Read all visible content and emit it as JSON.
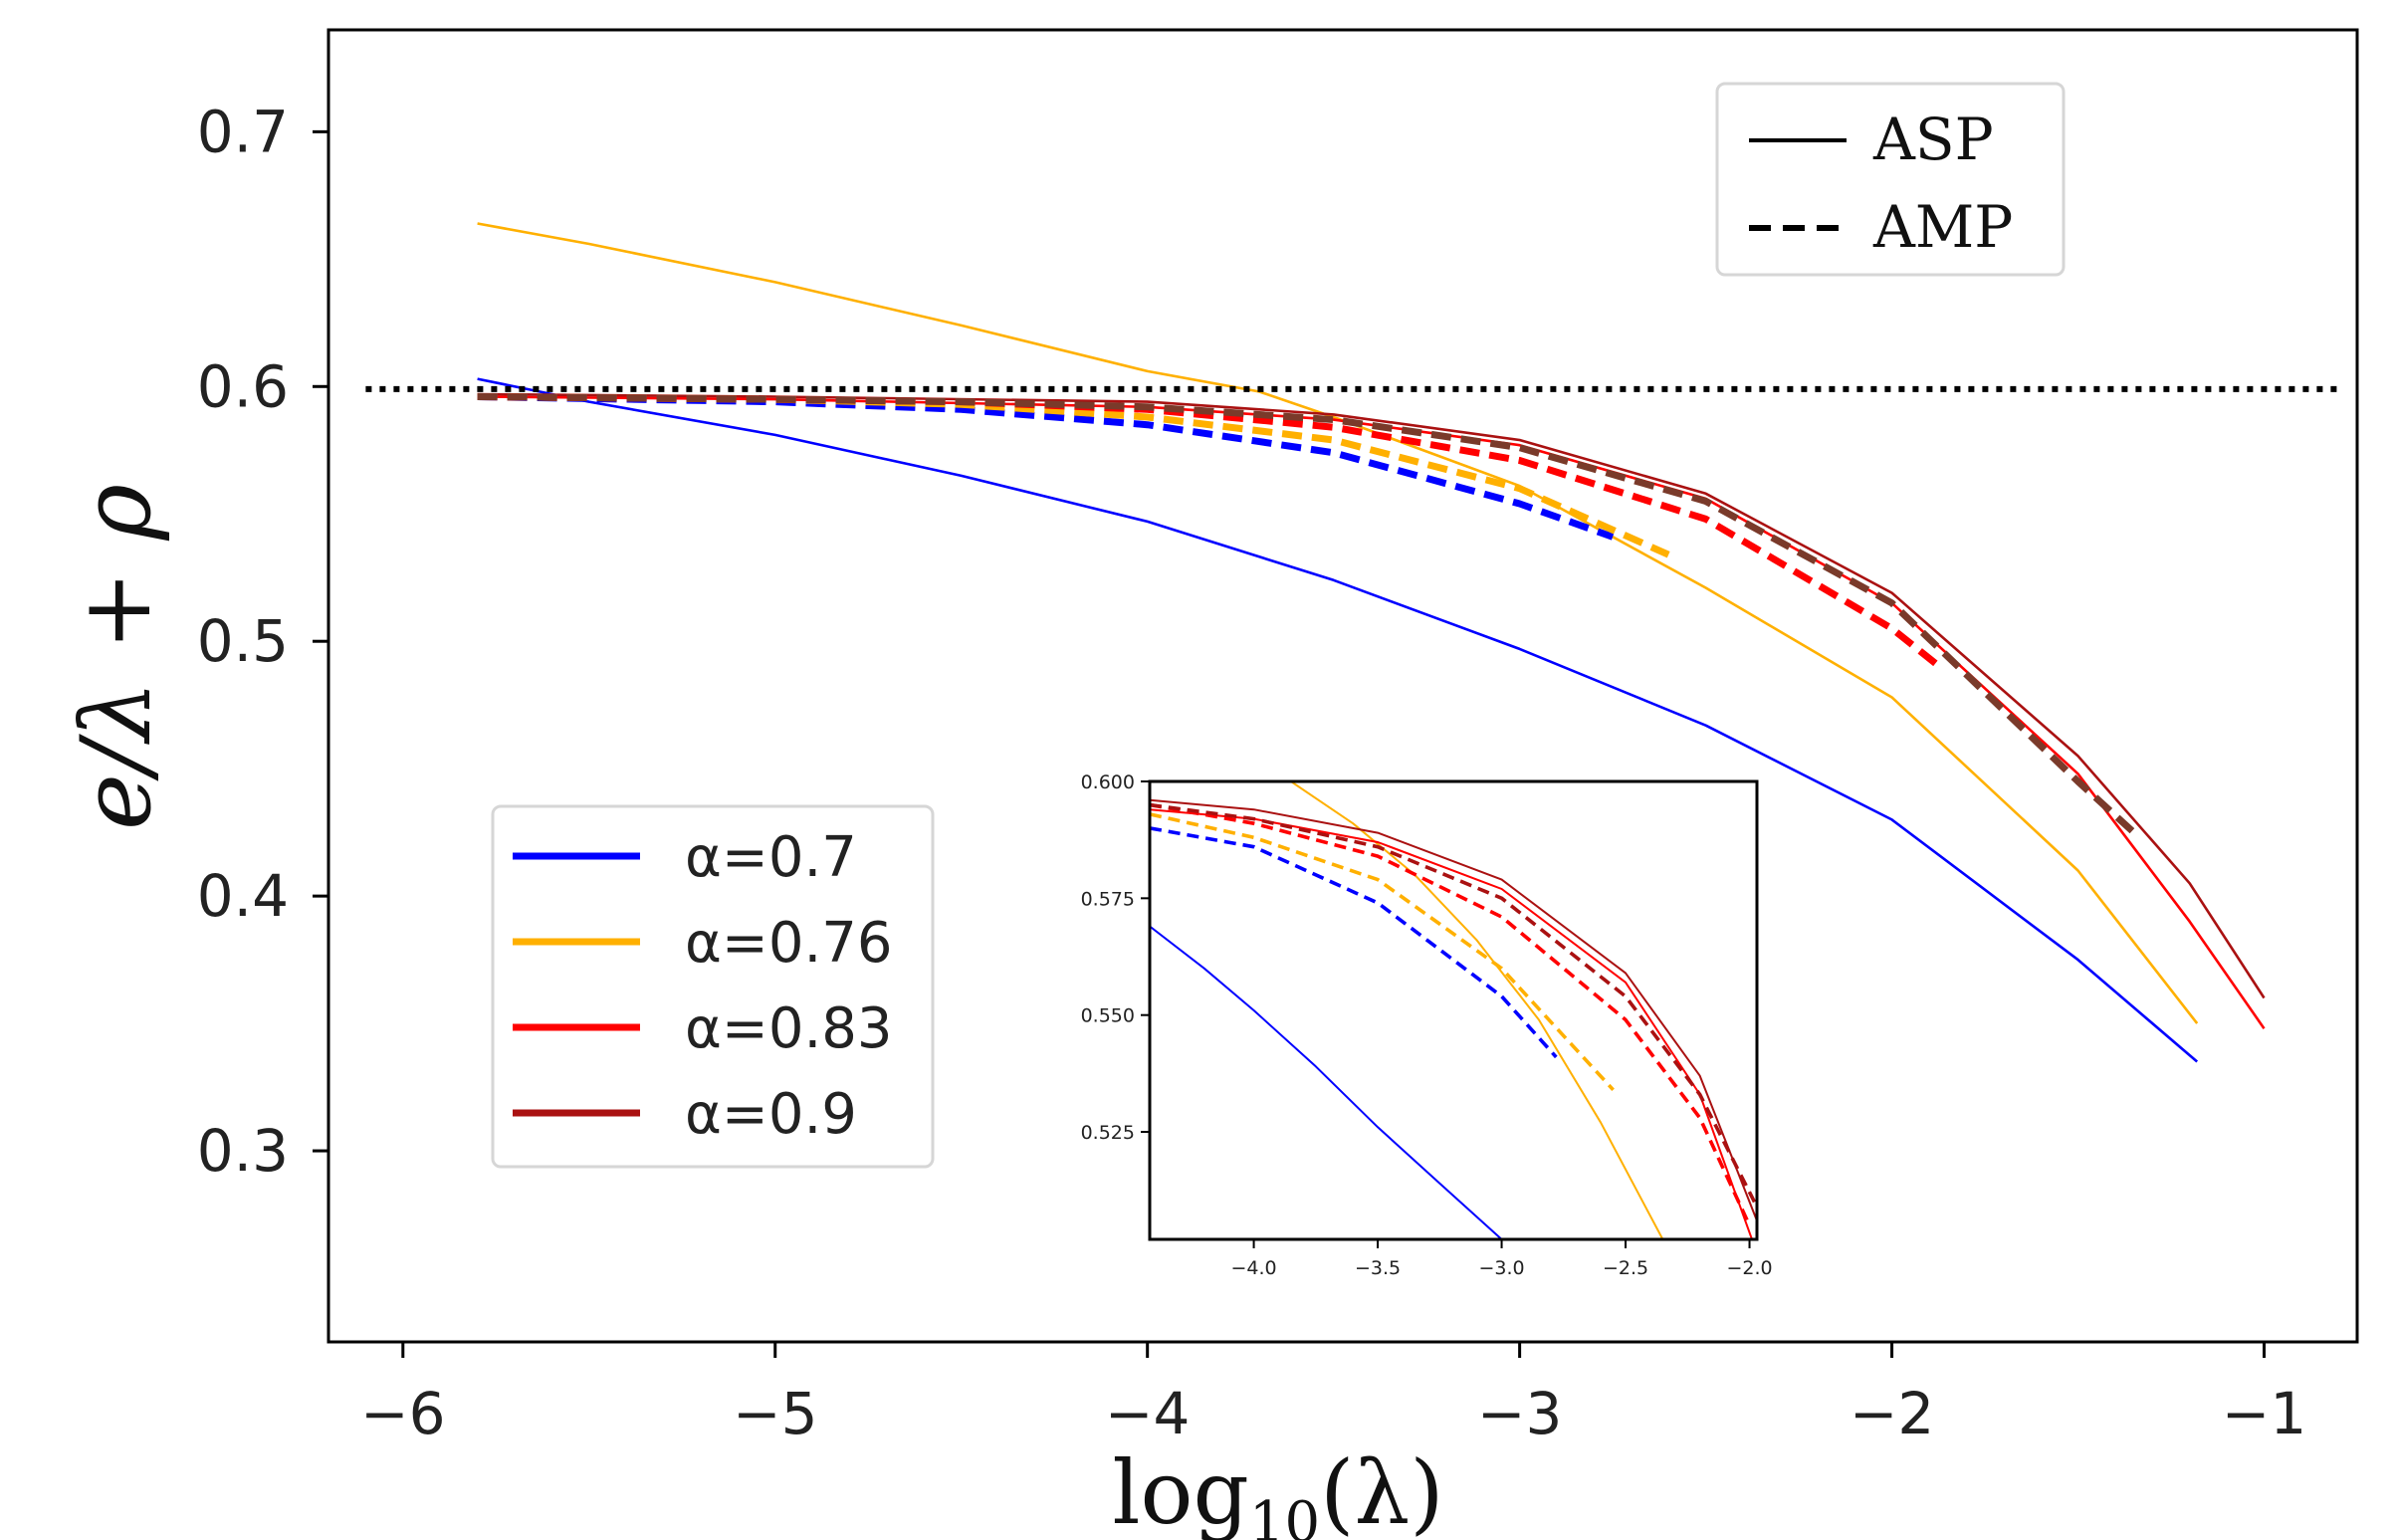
{
  "chart_data": [
    {
      "name": "main",
      "type": "line",
      "xlabel": "log10(λ)",
      "xlabel_parts": {
        "base": "log",
        "sub": "10",
        "arg": "(λ)"
      },
      "ylabel": "e/λ + ρ",
      "xlim": [
        -6.2,
        -0.75
      ],
      "ylim": [
        0.225,
        0.74
      ],
      "xticks": [
        -6,
        -5,
        -4,
        -3,
        -2,
        -1
      ],
      "xtick_labels": [
        "−6",
        "−5",
        "−4",
        "−3",
        "−2",
        "−1"
      ],
      "yticks": [
        0.3,
        0.4,
        0.5,
        0.6,
        0.7
      ],
      "ytick_labels": [
        "0.3",
        "0.4",
        "0.5",
        "0.6",
        "0.7"
      ],
      "reference_line": {
        "y": 0.599,
        "x_range": [
          -6.1,
          -0.8
        ],
        "style": "dotted",
        "color": "#000000"
      },
      "series": [
        {
          "name": "α=0.7 ASP",
          "alpha": "0.7",
          "style": "solid",
          "color": "#0000ff",
          "x": [
            -5.8,
            -5.5,
            -5.0,
            -4.5,
            -4.0,
            -3.5,
            -3.0,
            -2.5,
            -2.0,
            -1.5,
            -1.18
          ],
          "y": [
            0.603,
            0.594,
            0.581,
            0.565,
            0.547,
            0.524,
            0.497,
            0.467,
            0.43,
            0.375,
            0.335
          ]
        },
        {
          "name": "α=0.76 ASP",
          "alpha": "0.76",
          "style": "solid",
          "color": "#ffb000",
          "x": [
            -5.8,
            -5.5,
            -5.0,
            -4.5,
            -4.0,
            -3.7,
            -3.5,
            -3.0,
            -2.5,
            -2.0,
            -1.5,
            -1.18
          ],
          "y": [
            0.664,
            0.656,
            0.641,
            0.624,
            0.606,
            0.598,
            0.588,
            0.561,
            0.521,
            0.478,
            0.41,
            0.35
          ]
        },
        {
          "name": "α=0.83 ASP",
          "alpha": "0.83",
          "style": "solid",
          "color": "#ff0000",
          "x": [
            -5.8,
            -5.0,
            -4.0,
            -3.5,
            -3.0,
            -2.5,
            -2.0,
            -1.5,
            -1.2,
            -1.0
          ],
          "y": [
            0.596,
            0.595,
            0.592,
            0.587,
            0.577,
            0.556,
            0.515,
            0.448,
            0.39,
            0.348
          ]
        },
        {
          "name": "α=0.9 ASP",
          "alpha": "0.9",
          "style": "solid",
          "color": "#aa1111",
          "x": [
            -5.8,
            -5.0,
            -4.0,
            -3.5,
            -3.0,
            -2.5,
            -2.0,
            -1.5,
            -1.2,
            -1.0
          ],
          "y": [
            0.597,
            0.596,
            0.594,
            0.589,
            0.579,
            0.558,
            0.519,
            0.455,
            0.405,
            0.36
          ]
        },
        {
          "name": "α=0.7 AMP",
          "alpha": "0.7",
          "style": "dashed",
          "color": "#0000ff",
          "x": [
            -5.8,
            -5.0,
            -4.5,
            -4.0,
            -3.5,
            -3.0,
            -2.75
          ],
          "y": [
            0.596,
            0.594,
            0.591,
            0.585,
            0.574,
            0.554,
            0.541
          ]
        },
        {
          "name": "α=0.76 AMP",
          "alpha": "0.76",
          "style": "dashed",
          "color": "#ffb000",
          "x": [
            -5.8,
            -5.0,
            -4.5,
            -4.0,
            -3.5,
            -3.0,
            -2.6
          ],
          "y": [
            0.596,
            0.595,
            0.593,
            0.588,
            0.579,
            0.56,
            0.534
          ]
        },
        {
          "name": "α=0.83 AMP",
          "alpha": "0.83",
          "style": "dashed",
          "color": "#ff0000",
          "x": [
            -5.8,
            -5.0,
            -4.5,
            -4.0,
            -3.5,
            -3.0,
            -2.5,
            -2.0,
            -1.88
          ],
          "y": [
            0.596,
            0.595,
            0.594,
            0.591,
            0.584,
            0.571,
            0.548,
            0.505,
            0.491
          ]
        },
        {
          "name": "α=0.9 AMP",
          "alpha": "0.9",
          "style": "dashed",
          "color": "#7a3a2a",
          "x": [
            -5.8,
            -5.0,
            -4.5,
            -4.0,
            -3.5,
            -3.0,
            -2.5,
            -2.0,
            -1.5,
            -1.35
          ],
          "y": [
            0.596,
            0.595,
            0.594,
            0.592,
            0.587,
            0.576,
            0.555,
            0.515,
            0.445,
            0.425
          ]
        }
      ],
      "legend_alpha": {
        "position": "lower-left",
        "entries": [
          {
            "label": "α=0.7",
            "color": "#0000ff"
          },
          {
            "label": "α=0.76",
            "color": "#ffb000"
          },
          {
            "label": "α=0.83",
            "color": "#ff0000"
          },
          {
            "label": "α=0.9",
            "color": "#aa1111"
          }
        ]
      },
      "legend_style": {
        "position": "top-right",
        "entries": [
          {
            "label": "ASP",
            "style": "solid"
          },
          {
            "label": "AMP",
            "style": "dashed"
          }
        ]
      }
    },
    {
      "name": "inset",
      "type": "line",
      "xlim": [
        -4.42,
        -1.97
      ],
      "ylim": [
        0.502,
        0.6
      ],
      "xticks": [
        -4.0,
        -3.5,
        -3.0,
        -2.5,
        -2.0
      ],
      "xtick_labels": [
        "−4.0",
        "−3.5",
        "−3.0",
        "−2.5",
        "−2.0"
      ],
      "yticks": [
        0.525,
        0.55,
        0.575,
        0.6
      ],
      "ytick_labels": [
        "0.525",
        "0.550",
        "0.575",
        "0.600"
      ],
      "series": [
        {
          "name": "α=0.7 ASP",
          "style": "solid",
          "color": "#0000ff",
          "x": [
            -4.42,
            -4.2,
            -4.0,
            -3.75,
            -3.5,
            -3.25,
            -3.0
          ],
          "y": [
            0.569,
            0.56,
            0.551,
            0.539,
            0.526,
            0.514,
            0.502
          ]
        },
        {
          "name": "α=0.76 ASP",
          "style": "solid",
          "color": "#ffb000",
          "x": [
            -3.85,
            -3.6,
            -3.35,
            -3.1,
            -2.85,
            -2.6,
            -2.35
          ],
          "y": [
            0.6,
            0.591,
            0.58,
            0.566,
            0.549,
            0.527,
            0.502
          ]
        },
        {
          "name": "α=0.83 ASP",
          "style": "solid",
          "color": "#ff0000",
          "x": [
            -4.42,
            -4.0,
            -3.5,
            -3.0,
            -2.5,
            -2.2,
            -1.99
          ],
          "y": [
            0.594,
            0.592,
            0.587,
            0.577,
            0.557,
            0.533,
            0.502
          ]
        },
        {
          "name": "α=0.9 ASP",
          "style": "solid",
          "color": "#aa1111",
          "x": [
            -4.42,
            -4.0,
            -3.5,
            -3.0,
            -2.5,
            -2.2,
            -1.97
          ],
          "y": [
            0.596,
            0.594,
            0.589,
            0.579,
            0.559,
            0.537,
            0.506
          ]
        },
        {
          "name": "α=0.7 AMP",
          "style": "dashed",
          "color": "#0000ff",
          "x": [
            -4.42,
            -4.0,
            -3.5,
            -3.0,
            -2.78
          ],
          "y": [
            0.59,
            0.586,
            0.574,
            0.554,
            0.541
          ]
        },
        {
          "name": "α=0.76 AMP",
          "style": "dashed",
          "color": "#ffb000",
          "x": [
            -4.42,
            -4.0,
            -3.5,
            -3.0,
            -2.55
          ],
          "y": [
            0.593,
            0.588,
            0.579,
            0.56,
            0.534
          ]
        },
        {
          "name": "α=0.83 AMP",
          "style": "dashed",
          "color": "#ff0000",
          "x": [
            -4.42,
            -4.0,
            -3.5,
            -3.0,
            -2.5,
            -2.2,
            -2.0
          ],
          "y": [
            0.595,
            0.591,
            0.584,
            0.571,
            0.549,
            0.528,
            0.505
          ]
        },
        {
          "name": "α=0.9 AMP",
          "style": "dashed",
          "color": "#aa1111",
          "x": [
            -4.42,
            -4.0,
            -3.5,
            -3.0,
            -2.5,
            -2.2,
            -1.98
          ],
          "y": [
            0.595,
            0.592,
            0.586,
            0.575,
            0.554,
            0.533,
            0.51
          ]
        }
      ]
    }
  ]
}
